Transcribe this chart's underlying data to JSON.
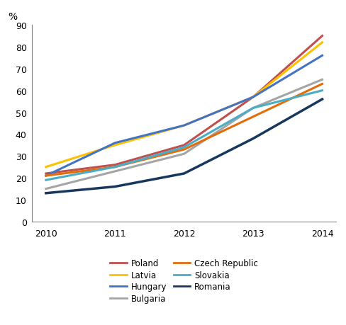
{
  "years": [
    2010,
    2011,
    2012,
    2013,
    2014
  ],
  "series": [
    {
      "name": "Poland",
      "values": [
        22,
        26,
        35,
        57,
        85
      ],
      "color": "#C0504D",
      "linewidth": 2.2
    },
    {
      "name": "Latvia",
      "values": [
        25,
        35,
        44,
        57,
        82
      ],
      "color": "#FFC000",
      "linewidth": 2.2
    },
    {
      "name": "Hungary",
      "values": [
        21,
        36,
        44,
        57,
        76
      ],
      "color": "#4472C4",
      "linewidth": 2.2
    },
    {
      "name": "Bulgaria",
      "values": [
        15,
        23,
        31,
        52,
        65
      ],
      "color": "#A5A5A5",
      "linewidth": 2.2
    },
    {
      "name": "Czech Republic",
      "values": [
        21,
        25,
        33,
        48,
        63
      ],
      "color": "#E36C09",
      "linewidth": 2.2
    },
    {
      "name": "Slovakia",
      "values": [
        19,
        25,
        34,
        52,
        60
      ],
      "color": "#4BACC6",
      "linewidth": 2.2
    },
    {
      "name": "Romania",
      "values": [
        13,
        16,
        22,
        38,
        56
      ],
      "color": "#17375E",
      "linewidth": 2.5
    }
  ],
  "percent_label": "%",
  "ylim": [
    0,
    90
  ],
  "yticks": [
    0,
    10,
    20,
    30,
    40,
    50,
    60,
    70,
    80,
    90
  ],
  "legend_col1": [
    "Poland",
    "Hungary",
    "Czech Republic",
    "Romania"
  ],
  "legend_col2": [
    "Latvia",
    "Bulgaria",
    "Slovakia"
  ],
  "background_color": "#FFFFFF"
}
